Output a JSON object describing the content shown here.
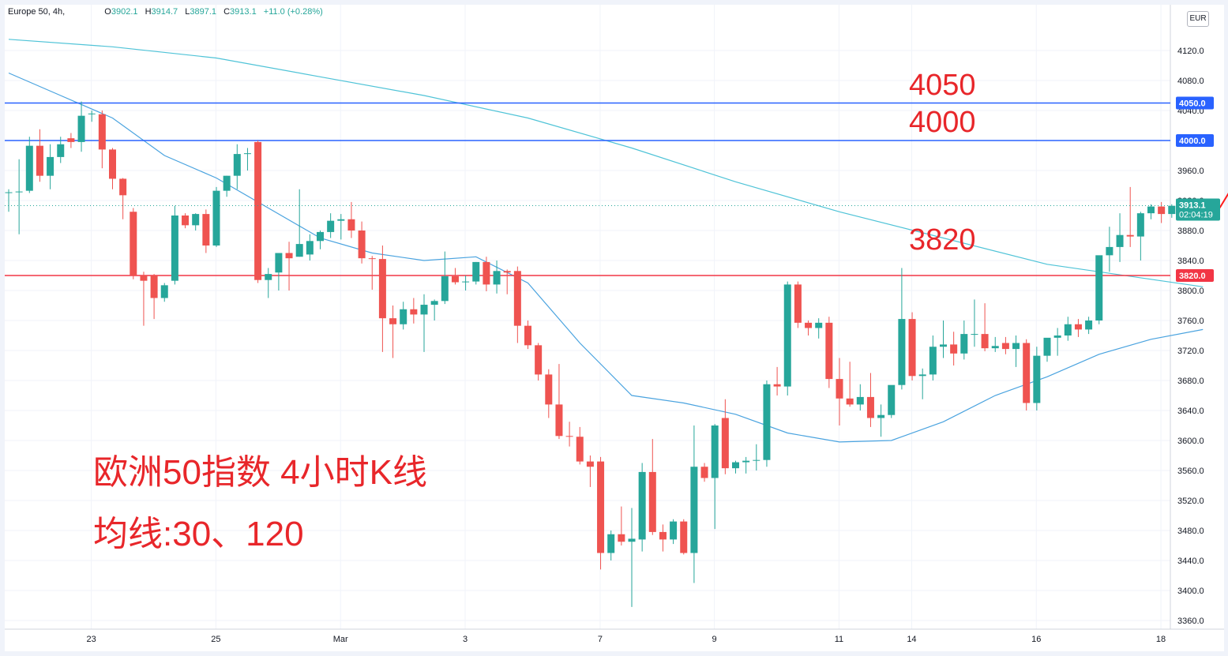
{
  "header": {
    "symbol": "Europe 50, 4h,",
    "open_label": "O",
    "open": "3902.1",
    "high_label": "H",
    "high": "3914.7",
    "low_label": "L",
    "low": "3897.1",
    "close_label": "C",
    "close": "3913.1",
    "change": "+11.0 (+0.28%)",
    "currency": "EUR"
  },
  "annotations": {
    "level_4050": "4050",
    "level_4000": "4000",
    "level_3820": "3820",
    "title": "欧洲50指数 4小时K线",
    "subtitle": "均线:30、120"
  },
  "colors": {
    "up": "#26a69a",
    "down": "#ef5350",
    "ma_short": "#4aa3df",
    "ma_long": "#4fc3d7",
    "resistance": "#2962ff",
    "support": "#f23645",
    "annotation": "#e8262a",
    "arrow": "#ff1a1a"
  },
  "chart_data": {
    "type": "candlestick",
    "symbol": "Europe 50",
    "interval": "4h",
    "y_axis": {
      "min": 3350,
      "max": 4150,
      "ticks": [
        3360,
        3400,
        3440,
        3480,
        3520,
        3560,
        3600,
        3640,
        3680,
        3720,
        3760,
        3800,
        3840,
        3880,
        3920,
        3960,
        4000,
        4040,
        4080,
        4120
      ],
      "tick_labels": [
        "3360.0",
        "3400.0",
        "3440.0",
        "3480.0",
        "3520.0",
        "3560.0",
        "3600.0",
        "3640.0",
        "3680.0",
        "3720.0",
        "3760.0",
        "3800.0",
        "3840.0",
        "3880.0",
        "3920.0",
        "3960.0",
        "4000.0",
        "4040.0",
        "4080.0",
        "4120.0"
      ]
    },
    "x_axis": {
      "labels": [
        {
          "label": "23",
          "index": 4
        },
        {
          "label": "25",
          "index": 16
        },
        {
          "label": "Mar",
          "index": 28
        },
        {
          "label": "3",
          "index": 40
        },
        {
          "label": "7",
          "index": 53
        },
        {
          "label": "9",
          "index": 64
        },
        {
          "label": "11",
          "index": 76
        },
        {
          "label": "14",
          "index": 83
        },
        {
          "label": "16",
          "index": 95
        },
        {
          "label": "18",
          "index": 107
        }
      ]
    },
    "candles": [
      {
        "o": 3930,
        "h": 3935,
        "l": 3905,
        "c": 3931
      },
      {
        "o": 3931,
        "h": 3975,
        "l": 3875,
        "c": 3932
      },
      {
        "o": 3933,
        "h": 4005,
        "l": 3930,
        "c": 3993
      },
      {
        "o": 3993,
        "h": 4015,
        "l": 3945,
        "c": 3953
      },
      {
        "o": 3953,
        "h": 3995,
        "l": 3935,
        "c": 3978
      },
      {
        "o": 3978,
        "h": 4005,
        "l": 3970,
        "c": 3995
      },
      {
        "o": 4003,
        "h": 4010,
        "l": 3990,
        "c": 3998
      },
      {
        "o": 3998,
        "h": 4052,
        "l": 3985,
        "c": 4033
      },
      {
        "o": 4035,
        "h": 4040,
        "l": 4025,
        "c": 4036
      },
      {
        "o": 4035,
        "h": 4040,
        "l": 3963,
        "c": 3988
      },
      {
        "o": 3988,
        "h": 3990,
        "l": 3935,
        "c": 3949
      },
      {
        "o": 3949,
        "h": 3950,
        "l": 3895,
        "c": 3927
      },
      {
        "o": 3905,
        "h": 3910,
        "l": 3815,
        "c": 3820
      },
      {
        "o": 3820,
        "h": 3825,
        "l": 3753,
        "c": 3813
      },
      {
        "o": 3820,
        "h": 3822,
        "l": 3762,
        "c": 3790
      },
      {
        "o": 3790,
        "h": 3810,
        "l": 3785,
        "c": 3807
      },
      {
        "o": 3813,
        "h": 3913,
        "l": 3808,
        "c": 3900
      },
      {
        "o": 3900,
        "h": 3903,
        "l": 3883,
        "c": 3887
      },
      {
        "o": 3887,
        "h": 3903,
        "l": 3880,
        "c": 3902
      },
      {
        "o": 3902,
        "h": 3908,
        "l": 3850,
        "c": 3860
      },
      {
        "o": 3860,
        "h": 3938,
        "l": 3858,
        "c": 3933
      },
      {
        "o": 3933,
        "h": 3953,
        "l": 3925,
        "c": 3953
      },
      {
        "o": 3953,
        "h": 3995,
        "l": 3935,
        "c": 3982
      },
      {
        "o": 3982,
        "h": 3990,
        "l": 3960,
        "c": 3983
      },
      {
        "o": 3998,
        "h": 4000,
        "l": 3810,
        "c": 3814
      },
      {
        "o": 3814,
        "h": 3830,
        "l": 3790,
        "c": 3822
      },
      {
        "o": 3824,
        "h": 3850,
        "l": 3800,
        "c": 3850
      },
      {
        "o": 3850,
        "h": 3865,
        "l": 3800,
        "c": 3843
      },
      {
        "o": 3845,
        "h": 3935,
        "l": 3845,
        "c": 3862
      },
      {
        "o": 3848,
        "h": 3875,
        "l": 3840,
        "c": 3866
      },
      {
        "o": 3866,
        "h": 3880,
        "l": 3855,
        "c": 3878
      },
      {
        "o": 3878,
        "h": 3903,
        "l": 3870,
        "c": 3893
      },
      {
        "o": 3893,
        "h": 3902,
        "l": 3868,
        "c": 3895
      },
      {
        "o": 3895,
        "h": 3918,
        "l": 3870,
        "c": 3880
      },
      {
        "o": 3880,
        "h": 3892,
        "l": 3836,
        "c": 3843
      },
      {
        "o": 3843,
        "h": 3846,
        "l": 3801,
        "c": 3842
      },
      {
        "o": 3842,
        "h": 3860,
        "l": 3718,
        "c": 3763
      },
      {
        "o": 3763,
        "h": 3780,
        "l": 3710,
        "c": 3755
      },
      {
        "o": 3755,
        "h": 3785,
        "l": 3748,
        "c": 3775
      },
      {
        "o": 3775,
        "h": 3790,
        "l": 3756,
        "c": 3768
      },
      {
        "o": 3768,
        "h": 3795,
        "l": 3718,
        "c": 3781
      },
      {
        "o": 3781,
        "h": 3788,
        "l": 3760,
        "c": 3786
      },
      {
        "o": 3786,
        "h": 3852,
        "l": 3782,
        "c": 3819
      },
      {
        "o": 3819,
        "h": 3830,
        "l": 3808,
        "c": 3811
      },
      {
        "o": 3811,
        "h": 3820,
        "l": 3800,
        "c": 3812
      },
      {
        "o": 3812,
        "h": 3838,
        "l": 3808,
        "c": 3838
      },
      {
        "o": 3838,
        "h": 3845,
        "l": 3799,
        "c": 3808
      },
      {
        "o": 3808,
        "h": 3840,
        "l": 3796,
        "c": 3826
      },
      {
        "o": 3826,
        "h": 3828,
        "l": 3795,
        "c": 3824
      },
      {
        "o": 3826,
        "h": 3832,
        "l": 3730,
        "c": 3753
      },
      {
        "o": 3753,
        "h": 3760,
        "l": 3722,
        "c": 3727
      },
      {
        "o": 3727,
        "h": 3730,
        "l": 3680,
        "c": 3688
      },
      {
        "o": 3688,
        "h": 3695,
        "l": 3630,
        "c": 3648
      },
      {
        "o": 3648,
        "h": 3702,
        "l": 3602,
        "c": 3606
      },
      {
        "o": 3606,
        "h": 3625,
        "l": 3592,
        "c": 3605
      },
      {
        "o": 3605,
        "h": 3618,
        "l": 3568,
        "c": 3572
      },
      {
        "o": 3572,
        "h": 3580,
        "l": 3538,
        "c": 3565
      },
      {
        "o": 3572,
        "h": 3578,
        "l": 3428,
        "c": 3450
      },
      {
        "o": 3450,
        "h": 3480,
        "l": 3440,
        "c": 3475
      },
      {
        "o": 3475,
        "h": 3512,
        "l": 3460,
        "c": 3465
      },
      {
        "o": 3465,
        "h": 3510,
        "l": 3378,
        "c": 3469
      },
      {
        "o": 3468,
        "h": 3570,
        "l": 3452,
        "c": 3558
      },
      {
        "o": 3558,
        "h": 3602,
        "l": 3474,
        "c": 3478
      },
      {
        "o": 3478,
        "h": 3488,
        "l": 3452,
        "c": 3468
      },
      {
        "o": 3468,
        "h": 3495,
        "l": 3462,
        "c": 3492
      },
      {
        "o": 3492,
        "h": 3495,
        "l": 3448,
        "c": 3450
      },
      {
        "o": 3450,
        "h": 3620,
        "l": 3410,
        "c": 3565
      },
      {
        "o": 3565,
        "h": 3570,
        "l": 3545,
        "c": 3550
      },
      {
        "o": 3550,
        "h": 3622,
        "l": 3482,
        "c": 3620
      },
      {
        "o": 3630,
        "h": 3655,
        "l": 3555,
        "c": 3563
      },
      {
        "o": 3563,
        "h": 3573,
        "l": 3556,
        "c": 3571
      },
      {
        "o": 3571,
        "h": 3578,
        "l": 3556,
        "c": 3573
      },
      {
        "o": 3573,
        "h": 3595,
        "l": 3560,
        "c": 3574
      },
      {
        "o": 3574,
        "h": 3680,
        "l": 3565,
        "c": 3675
      },
      {
        "o": 3675,
        "h": 3698,
        "l": 3660,
        "c": 3672
      },
      {
        "o": 3672,
        "h": 3812,
        "l": 3660,
        "c": 3808
      },
      {
        "o": 3808,
        "h": 3812,
        "l": 3750,
        "c": 3757
      },
      {
        "o": 3757,
        "h": 3760,
        "l": 3740,
        "c": 3750
      },
      {
        "o": 3750,
        "h": 3763,
        "l": 3736,
        "c": 3757
      },
      {
        "o": 3757,
        "h": 3765,
        "l": 3670,
        "c": 3682
      },
      {
        "o": 3682,
        "h": 3710,
        "l": 3620,
        "c": 3656
      },
      {
        "o": 3656,
        "h": 3705,
        "l": 3645,
        "c": 3648
      },
      {
        "o": 3648,
        "h": 3675,
        "l": 3640,
        "c": 3658
      },
      {
        "o": 3658,
        "h": 3690,
        "l": 3618,
        "c": 3630
      },
      {
        "o": 3630,
        "h": 3648,
        "l": 3605,
        "c": 3634
      },
      {
        "o": 3634,
        "h": 3668,
        "l": 3630,
        "c": 3674
      },
      {
        "o": 3674,
        "h": 3830,
        "l": 3668,
        "c": 3762
      },
      {
        "o": 3762,
        "h": 3771,
        "l": 3680,
        "c": 3686
      },
      {
        "o": 3686,
        "h": 3696,
        "l": 3655,
        "c": 3688
      },
      {
        "o": 3688,
        "h": 3740,
        "l": 3680,
        "c": 3725
      },
      {
        "o": 3725,
        "h": 3760,
        "l": 3710,
        "c": 3728
      },
      {
        "o": 3728,
        "h": 3745,
        "l": 3700,
        "c": 3716
      },
      {
        "o": 3716,
        "h": 3760,
        "l": 3708,
        "c": 3742
      },
      {
        "o": 3742,
        "h": 3788,
        "l": 3725,
        "c": 3742
      },
      {
        "o": 3742,
        "h": 3783,
        "l": 3719,
        "c": 3723
      },
      {
        "o": 3723,
        "h": 3738,
        "l": 3718,
        "c": 3726
      },
      {
        "o": 3730,
        "h": 3738,
        "l": 3715,
        "c": 3722
      },
      {
        "o": 3722,
        "h": 3740,
        "l": 3698,
        "c": 3730
      },
      {
        "o": 3730,
        "h": 3735,
        "l": 3640,
        "c": 3650
      },
      {
        "o": 3650,
        "h": 3725,
        "l": 3640,
        "c": 3713
      },
      {
        "o": 3713,
        "h": 3735,
        "l": 3705,
        "c": 3737
      },
      {
        "o": 3737,
        "h": 3750,
        "l": 3713,
        "c": 3740
      },
      {
        "o": 3740,
        "h": 3765,
        "l": 3733,
        "c": 3755
      },
      {
        "o": 3755,
        "h": 3762,
        "l": 3738,
        "c": 3748
      },
      {
        "o": 3748,
        "h": 3765,
        "l": 3742,
        "c": 3760
      },
      {
        "o": 3760,
        "h": 3845,
        "l": 3755,
        "c": 3847
      },
      {
        "o": 3847,
        "h": 3885,
        "l": 3825,
        "c": 3858
      },
      {
        "o": 3858,
        "h": 3903,
        "l": 3838,
        "c": 3874
      },
      {
        "o": 3874,
        "h": 3938,
        "l": 3858,
        "c": 3872
      },
      {
        "o": 3872,
        "h": 3905,
        "l": 3840,
        "c": 3903
      },
      {
        "o": 3903,
        "h": 3915,
        "l": 3895,
        "c": 3912
      },
      {
        "o": 3912,
        "h": 3918,
        "l": 3890,
        "c": 3902
      },
      {
        "o": 3902,
        "h": 3915,
        "l": 3897,
        "c": 3913
      }
    ],
    "series": [
      {
        "name": "30",
        "type": "line",
        "x": [
          0,
          5,
          10,
          15,
          20,
          25,
          30,
          35,
          40,
          45,
          50,
          55,
          60,
          65,
          70,
          75,
          80,
          85,
          90,
          95,
          100,
          105,
          110,
          115
        ],
        "values": [
          4090,
          4060,
          4030,
          3980,
          3950,
          3910,
          3870,
          3850,
          3840,
          3845,
          3810,
          3730,
          3660,
          3650,
          3635,
          3610,
          3598,
          3600,
          3625,
          3660,
          3685,
          3715,
          3735,
          3748
        ]
      },
      {
        "name": "120",
        "type": "line",
        "x": [
          0,
          10,
          20,
          30,
          40,
          50,
          60,
          70,
          80,
          90,
          100,
          110,
          115
        ],
        "values": [
          4135,
          4125,
          4110,
          4085,
          4060,
          4030,
          3990,
          3945,
          3905,
          3870,
          3835,
          3815,
          3805
        ]
      }
    ],
    "levels": [
      {
        "value": 4050,
        "label": "4050.0",
        "color": "#2962ff"
      },
      {
        "value": 4000,
        "label": "4000.0",
        "color": "#2962ff"
      },
      {
        "value": 3820,
        "label": "3820.0",
        "color": "#f23645"
      }
    ],
    "last_price": {
      "value": 3913.1,
      "label": "3913.1",
      "countdown": "02:04:19"
    },
    "arrow": {
      "from": {
        "index": 116,
        "value": 3910
      },
      "to": {
        "index": 121,
        "value": 4003
      }
    }
  }
}
